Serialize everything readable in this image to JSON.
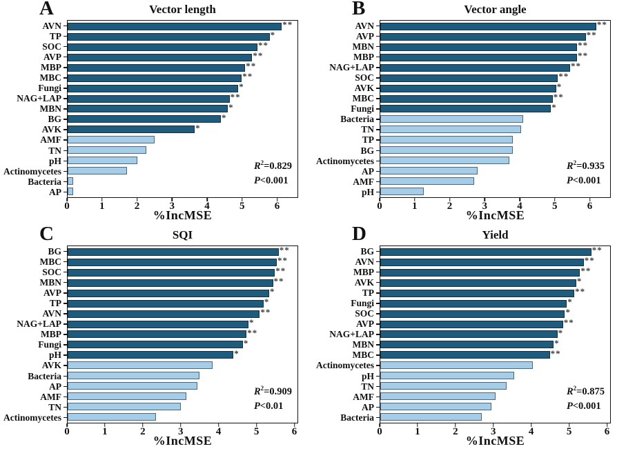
{
  "colors": {
    "dark_bar": "#1E5B7D",
    "light_bar": "#A5CDE7",
    "dark_bar_border": "#14303F",
    "light_bar_border": "#4A677C",
    "star": "#3A3A3A",
    "axis": "#111111"
  },
  "xlabel": "%IncMSE",
  "chart_data": [
    {
      "type": "bar",
      "panel_letter": "A",
      "title": "Vector length",
      "xlabel": "%IncMSE",
      "xlim": [
        0,
        6.6
      ],
      "xticks": [
        0,
        1,
        2,
        3,
        4,
        5,
        6
      ],
      "legend": "none",
      "grid": false,
      "stats": {
        "r2": "0.829",
        "p": "<0.001"
      },
      "bars": [
        {
          "label": "AVN",
          "value": 6.15,
          "sig": "**"
        },
        {
          "label": "TP",
          "value": 5.8,
          "sig": "*"
        },
        {
          "label": "SOC",
          "value": 5.45,
          "sig": "**"
        },
        {
          "label": "AVP",
          "value": 5.3,
          "sig": "**"
        },
        {
          "label": "MBP",
          "value": 5.1,
          "sig": "**"
        },
        {
          "label": "MBC",
          "value": 5.0,
          "sig": "**"
        },
        {
          "label": "Fungi",
          "value": 4.9,
          "sig": "*"
        },
        {
          "label": "NAG+LAP",
          "value": 4.65,
          "sig": "**"
        },
        {
          "label": "MBN",
          "value": 4.6,
          "sig": "*"
        },
        {
          "label": "BG",
          "value": 4.4,
          "sig": "*"
        },
        {
          "label": "AVK",
          "value": 3.65,
          "sig": "*"
        },
        {
          "label": "AMF",
          "value": 2.5,
          "sig": ""
        },
        {
          "label": "TN",
          "value": 2.25,
          "sig": ""
        },
        {
          "label": "pH",
          "value": 2.0,
          "sig": ""
        },
        {
          "label": "Actinomycetes",
          "value": 1.7,
          "sig": ""
        },
        {
          "label": "Bacteria",
          "value": 0.15,
          "sig": ""
        },
        {
          "label": "AP",
          "value": 0.15,
          "sig": ""
        }
      ]
    },
    {
      "type": "bar",
      "panel_letter": "B",
      "title": "Vector angle",
      "xlabel": "%IncMSE",
      "xlim": [
        0,
        6.6
      ],
      "xticks": [
        0,
        1,
        2,
        3,
        4,
        5,
        6
      ],
      "legend": "none",
      "grid": false,
      "stats": {
        "r2": "0.935",
        "p": "<0.001"
      },
      "bars": [
        {
          "label": "AVN",
          "value": 6.2,
          "sig": "**"
        },
        {
          "label": "AVP",
          "value": 5.9,
          "sig": "**"
        },
        {
          "label": "MBN",
          "value": 5.65,
          "sig": "**"
        },
        {
          "label": "MBP",
          "value": 5.65,
          "sig": "**"
        },
        {
          "label": "NAG+LAP",
          "value": 5.45,
          "sig": "**"
        },
        {
          "label": "SOC",
          "value": 5.1,
          "sig": "**"
        },
        {
          "label": "AVK",
          "value": 5.05,
          "sig": "*"
        },
        {
          "label": "MBC",
          "value": 4.95,
          "sig": "**"
        },
        {
          "label": "Fungi",
          "value": 4.9,
          "sig": "*"
        },
        {
          "label": "Bacteria",
          "value": 4.1,
          "sig": ""
        },
        {
          "label": "TN",
          "value": 4.05,
          "sig": ""
        },
        {
          "label": "TP",
          "value": 3.8,
          "sig": ""
        },
        {
          "label": "BG",
          "value": 3.8,
          "sig": ""
        },
        {
          "label": "Actinomycetes",
          "value": 3.7,
          "sig": ""
        },
        {
          "label": "AP",
          "value": 2.8,
          "sig": ""
        },
        {
          "label": "AMF",
          "value": 2.7,
          "sig": ""
        },
        {
          "label": "pH",
          "value": 1.25,
          "sig": ""
        }
      ]
    },
    {
      "type": "bar",
      "panel_letter": "C",
      "title": "SQI",
      "xlabel": "%IncMSE",
      "xlim": [
        0,
        6.1
      ],
      "xticks": [
        0,
        1,
        2,
        3,
        4,
        5,
        6
      ],
      "legend": "none",
      "grid": false,
      "stats": {
        "r2": "0.909",
        "p": "<0.01"
      },
      "bars": [
        {
          "label": "BG",
          "value": 5.6,
          "sig": "**"
        },
        {
          "label": "MBC",
          "value": 5.55,
          "sig": "**"
        },
        {
          "label": "SOC",
          "value": 5.5,
          "sig": "**"
        },
        {
          "label": "MBN",
          "value": 5.45,
          "sig": "**"
        },
        {
          "label": "AVP",
          "value": 5.35,
          "sig": "*"
        },
        {
          "label": "TP",
          "value": 5.2,
          "sig": "*"
        },
        {
          "label": "AVN",
          "value": 5.1,
          "sig": "**"
        },
        {
          "label": "NAG+LAP",
          "value": 4.8,
          "sig": "*"
        },
        {
          "label": "MBP",
          "value": 4.75,
          "sig": "**"
        },
        {
          "label": "Fungi",
          "value": 4.65,
          "sig": "*"
        },
        {
          "label": "pH",
          "value": 4.4,
          "sig": "*"
        },
        {
          "label": "AVK",
          "value": 3.85,
          "sig": ""
        },
        {
          "label": "Bacteria",
          "value": 3.5,
          "sig": ""
        },
        {
          "label": "AP",
          "value": 3.45,
          "sig": ""
        },
        {
          "label": "AMF",
          "value": 3.15,
          "sig": ""
        },
        {
          "label": "TN",
          "value": 3.0,
          "sig": ""
        },
        {
          "label": "Actinomycetes",
          "value": 2.35,
          "sig": ""
        }
      ]
    },
    {
      "type": "bar",
      "panel_letter": "D",
      "title": "Yield",
      "xlabel": "%IncMSE",
      "xlim": [
        0,
        6.1
      ],
      "xticks": [
        0,
        1,
        2,
        3,
        4,
        5,
        6
      ],
      "legend": "none",
      "grid": false,
      "stats": {
        "r2": "0.875",
        "p": "<0.001"
      },
      "bars": [
        {
          "label": "BG",
          "value": 5.6,
          "sig": "**"
        },
        {
          "label": "AVN",
          "value": 5.4,
          "sig": "**"
        },
        {
          "label": "MBP",
          "value": 5.3,
          "sig": "**"
        },
        {
          "label": "AVK",
          "value": 5.2,
          "sig": "*"
        },
        {
          "label": "TP",
          "value": 5.15,
          "sig": "**"
        },
        {
          "label": "Fungi",
          "value": 4.95,
          "sig": "*"
        },
        {
          "label": "SOC",
          "value": 4.9,
          "sig": "*"
        },
        {
          "label": "AVP",
          "value": 4.85,
          "sig": "**"
        },
        {
          "label": "NAG+LAP",
          "value": 4.7,
          "sig": "*"
        },
        {
          "label": "MBN",
          "value": 4.6,
          "sig": "*"
        },
        {
          "label": "MBC",
          "value": 4.5,
          "sig": "**"
        },
        {
          "label": "Actinomycetes",
          "value": 4.05,
          "sig": ""
        },
        {
          "label": "pH",
          "value": 3.55,
          "sig": ""
        },
        {
          "label": "TN",
          "value": 3.35,
          "sig": ""
        },
        {
          "label": "AMF",
          "value": 3.05,
          "sig": ""
        },
        {
          "label": "AP",
          "value": 2.95,
          "sig": ""
        },
        {
          "label": "Bacteria",
          "value": 2.7,
          "sig": ""
        }
      ]
    }
  ]
}
